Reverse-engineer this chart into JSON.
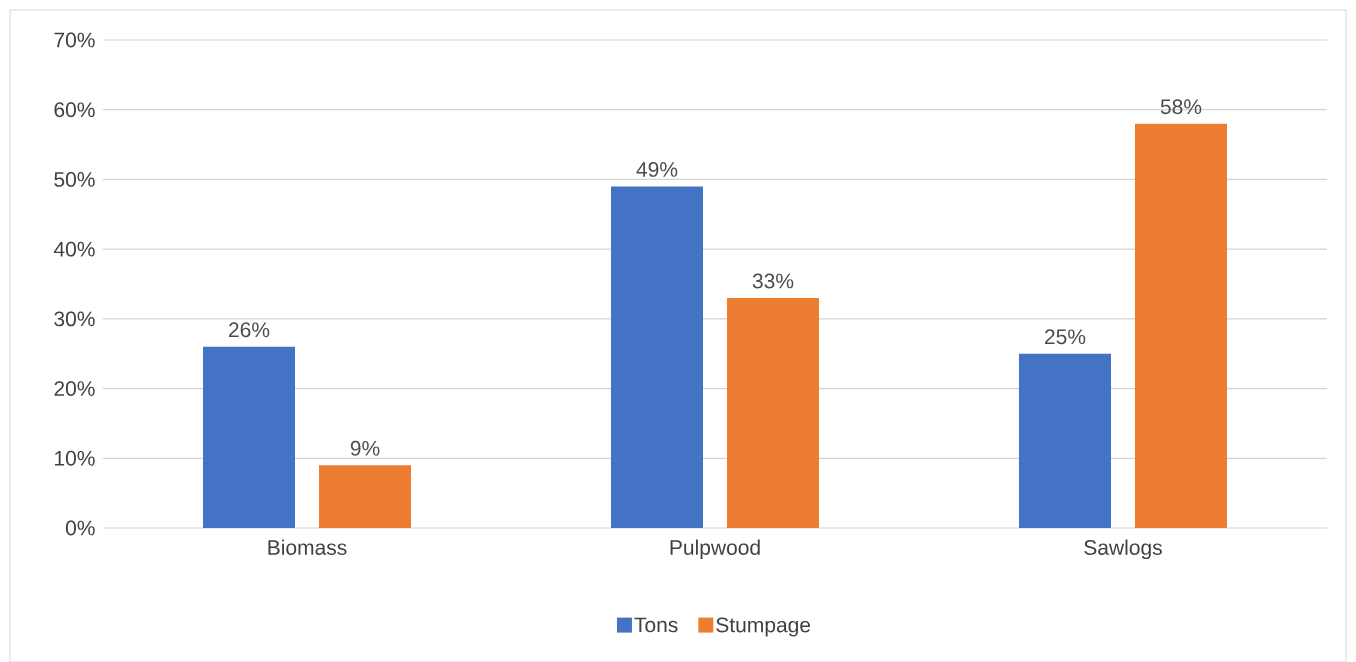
{
  "chart_data": {
    "type": "bar",
    "categories": [
      "Biomass",
      "Pulpwood",
      "Sawlogs"
    ],
    "series": [
      {
        "name": "Tons",
        "color": "#4472c4",
        "values": [
          26,
          49,
          25
        ],
        "value_labels": [
          "26%",
          "49%",
          "25%"
        ]
      },
      {
        "name": "Stumpage",
        "color": "#ed7d31",
        "values": [
          9,
          33,
          58
        ],
        "value_labels": [
          "9%",
          "33%",
          "58%"
        ]
      }
    ],
    "ylim": [
      0,
      70
    ],
    "yticks": [
      {
        "value": 0,
        "label": "0%"
      },
      {
        "value": 10,
        "label": "10%"
      },
      {
        "value": 20,
        "label": "20%"
      },
      {
        "value": 30,
        "label": "30%"
      },
      {
        "value": 40,
        "label": "40%"
      },
      {
        "value": 50,
        "label": "50%"
      },
      {
        "value": 60,
        "label": "60%"
      },
      {
        "value": 70,
        "label": "70%"
      }
    ],
    "grid": "y",
    "legend": "bottom"
  }
}
